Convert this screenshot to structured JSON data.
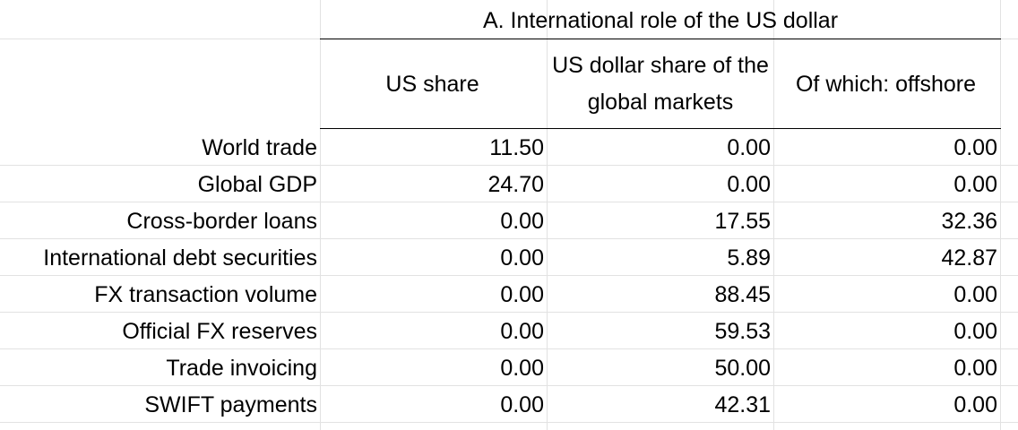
{
  "table": {
    "title": "A. International role of the US dollar",
    "columns": [
      "US share",
      "US dollar share of the global markets",
      "Of which: offshore"
    ],
    "rows": [
      {
        "label": "World trade",
        "values": [
          "11.50",
          "0.00",
          "0.00"
        ]
      },
      {
        "label": "Global GDP",
        "values": [
          "24.70",
          "0.00",
          "0.00"
        ]
      },
      {
        "label": "Cross-border loans",
        "values": [
          "0.00",
          "17.55",
          "32.36"
        ]
      },
      {
        "label": "International debt securities",
        "values": [
          "0.00",
          "5.89",
          "42.87"
        ]
      },
      {
        "label": "FX transaction volume",
        "values": [
          "0.00",
          "88.45",
          "0.00"
        ]
      },
      {
        "label": "Official FX reserves",
        "values": [
          "0.00",
          "59.53",
          "0.00"
        ]
      },
      {
        "label": "Trade invoicing",
        "values": [
          "0.00",
          "50.00",
          "0.00"
        ]
      },
      {
        "label": "SWIFT payments",
        "values": [
          "0.00",
          "42.31",
          "0.00"
        ]
      }
    ]
  }
}
